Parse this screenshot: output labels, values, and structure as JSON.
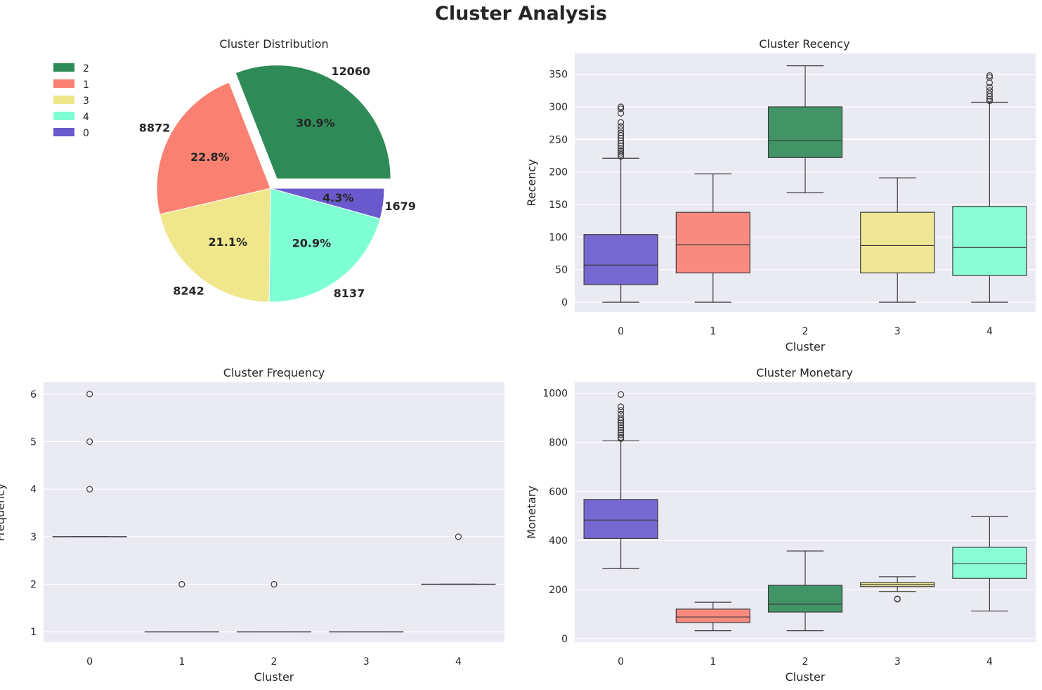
{
  "page_title": "Cluster Analysis",
  "colors": {
    "background": "#ffffff",
    "axes_face": "#eaeaf2",
    "grid": "#ffffff",
    "box_edge": "#3d3d3d",
    "cluster_0": "#6a5acd",
    "cluster_1": "#fa8072",
    "cluster_2": "#2e8b57",
    "cluster_3": "#f0e68c",
    "cluster_4": "#7fffd4"
  },
  "chart_data": [
    {
      "type": "pie",
      "title": "Cluster Distribution",
      "labels": [
        "2",
        "1",
        "3",
        "4",
        "0"
      ],
      "values": [
        12060,
        8872,
        8242,
        8137,
        1679
      ],
      "percent_labels": [
        "30.9%",
        "22.8%",
        "21.1%",
        "20.9%",
        "4.3%"
      ],
      "colors": [
        "#2e8b57",
        "#fa8072",
        "#f0e68c",
        "#7fffd4",
        "#6a5acd"
      ],
      "explode": [
        0.1,
        0,
        0,
        0,
        0
      ],
      "legend": {
        "position": "top-left",
        "entries": [
          "2",
          "1",
          "3",
          "4",
          "0"
        ]
      }
    },
    {
      "type": "box",
      "title": "Cluster Recency",
      "xlabel": "Cluster",
      "ylabel": "Recency",
      "categories": [
        "0",
        "1",
        "2",
        "3",
        "4"
      ],
      "ylim": [
        -15,
        382
      ],
      "yticks": [
        0,
        50,
        100,
        150,
        200,
        250,
        300,
        350
      ],
      "boxes": [
        {
          "whislo": 0,
          "q1": 27,
          "med": 57,
          "q3": 104,
          "whishi": 221,
          "fliers": [
            224,
            227,
            230,
            233,
            236,
            240,
            244,
            248,
            252,
            256,
            260,
            265,
            270,
            276,
            290,
            297,
            300
          ]
        },
        {
          "whislo": 0,
          "q1": 45,
          "med": 88,
          "q3": 138,
          "whishi": 197,
          "fliers": []
        },
        {
          "whislo": 168,
          "q1": 222,
          "med": 248,
          "q3": 300,
          "whishi": 363,
          "fliers": []
        },
        {
          "whislo": 0,
          "q1": 45,
          "med": 87,
          "q3": 138,
          "whishi": 191,
          "fliers": []
        },
        {
          "whislo": 0,
          "q1": 41,
          "med": 84,
          "q3": 147,
          "whishi": 307,
          "fliers": [
            309,
            312,
            316,
            320,
            325,
            330,
            337,
            345,
            348
          ]
        }
      ]
    },
    {
      "type": "box",
      "title": "Cluster Frequency",
      "xlabel": "Cluster",
      "ylabel": "Frequency",
      "categories": [
        "0",
        "1",
        "2",
        "3",
        "4"
      ],
      "ylim": [
        0.78,
        6.25
      ],
      "yticks": [
        1,
        2,
        3,
        4,
        5,
        6
      ],
      "boxes": [
        {
          "whislo": 3,
          "q1": 3,
          "med": 3,
          "q3": 3,
          "whishi": 3,
          "fliers": [
            4,
            5,
            6
          ]
        },
        {
          "whislo": 1,
          "q1": 1,
          "med": 1,
          "q3": 1,
          "whishi": 1,
          "fliers": [
            2
          ]
        },
        {
          "whislo": 1,
          "q1": 1,
          "med": 1,
          "q3": 1,
          "whishi": 1,
          "fliers": [
            2
          ]
        },
        {
          "whislo": 1,
          "q1": 1,
          "med": 1,
          "q3": 1,
          "whishi": 1,
          "fliers": []
        },
        {
          "whislo": 2,
          "q1": 2,
          "med": 2,
          "q3": 2,
          "whishi": 2,
          "fliers": [
            3
          ]
        }
      ]
    },
    {
      "type": "box",
      "title": "Cluster Monetary",
      "xlabel": "Cluster",
      "ylabel": "Monetary",
      "categories": [
        "0",
        "1",
        "2",
        "3",
        "4"
      ],
      "ylim": [
        -15,
        1045
      ],
      "yticks": [
        0,
        200,
        400,
        600,
        800,
        1000
      ],
      "boxes": [
        {
          "whislo": 285,
          "q1": 408,
          "med": 483,
          "q3": 567,
          "whishi": 806,
          "fliers": [
            815,
            820,
            830,
            840,
            850,
            860,
            870,
            880,
            890,
            900,
            915,
            930,
            945,
            995
          ]
        },
        {
          "whislo": 32,
          "q1": 65,
          "med": 88,
          "q3": 120,
          "whishi": 148,
          "fliers": []
        },
        {
          "whislo": 32,
          "q1": 108,
          "med": 140,
          "q3": 217,
          "whishi": 357,
          "fliers": []
        },
        {
          "whislo": 192,
          "q1": 212,
          "med": 220,
          "q3": 228,
          "whishi": 252,
          "fliers": [
            160,
            162
          ]
        },
        {
          "whislo": 112,
          "q1": 245,
          "med": 305,
          "q3": 372,
          "whishi": 497,
          "fliers": []
        }
      ]
    }
  ]
}
